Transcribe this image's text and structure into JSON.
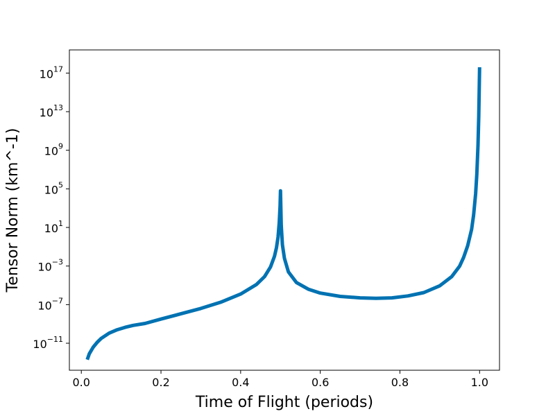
{
  "chart_data": {
    "type": "line",
    "title": "",
    "xlabel": "Time of Flight (periods)",
    "ylabel": "Tensor Norm (km^-1)",
    "xlim": [
      -0.03,
      1.05
    ],
    "ylim": [
      -13.8,
      19.4
    ],
    "yscale": "log",
    "grid": false,
    "legend": "none",
    "x_ticks": [
      {
        "value": 0.0,
        "label": "0.0"
      },
      {
        "value": 0.2,
        "label": "0.2"
      },
      {
        "value": 0.4,
        "label": "0.4"
      },
      {
        "value": 0.6,
        "label": "0.6"
      },
      {
        "value": 0.8,
        "label": "0.8"
      },
      {
        "value": 1.0,
        "label": "1.0"
      }
    ],
    "y_ticks": [
      {
        "exp": -11,
        "base": "10",
        "sup": "−11"
      },
      {
        "exp": -7,
        "base": "10",
        "sup": "−7"
      },
      {
        "exp": -3,
        "base": "10",
        "sup": "−3"
      },
      {
        "exp": 1,
        "base": "10",
        "sup": "1"
      },
      {
        "exp": 5,
        "base": "10",
        "sup": "5"
      },
      {
        "exp": 9,
        "base": "10",
        "sup": "9"
      },
      {
        "exp": 13,
        "base": "10",
        "sup": "13"
      },
      {
        "exp": 17,
        "base": "10",
        "sup": "17"
      }
    ],
    "series": [
      {
        "color": "#0072b2",
        "x": [
          0.015,
          0.02,
          0.03,
          0.04,
          0.05,
          0.07,
          0.09,
          0.11,
          0.13,
          0.16,
          0.2,
          0.25,
          0.3,
          0.35,
          0.4,
          0.44,
          0.46,
          0.475,
          0.485,
          0.49,
          0.494,
          0.497,
          0.499,
          0.5,
          0.502,
          0.505,
          0.51,
          0.52,
          0.54,
          0.57,
          0.6,
          0.65,
          0.7,
          0.74,
          0.78,
          0.82,
          0.86,
          0.9,
          0.93,
          0.95,
          0.96,
          0.97,
          0.98,
          0.985,
          0.99,
          0.993,
          0.996,
          0.998,
          0.999,
          1.0
        ],
        "log10_y": [
          -12.7,
          -12.1,
          -11.4,
          -10.9,
          -10.5,
          -9.95,
          -9.6,
          -9.35,
          -9.15,
          -8.95,
          -8.5,
          -7.95,
          -7.4,
          -6.75,
          -5.9,
          -4.9,
          -4.1,
          -3.1,
          -2.0,
          -1.1,
          0.0,
          1.5,
          3.2,
          4.8,
          1.2,
          -0.8,
          -2.2,
          -3.6,
          -4.7,
          -5.4,
          -5.8,
          -6.15,
          -6.3,
          -6.35,
          -6.3,
          -6.1,
          -5.75,
          -5.05,
          -4.1,
          -3.0,
          -2.1,
          -0.9,
          0.8,
          2.3,
          4.5,
          6.5,
          9.5,
          12.5,
          15.0,
          17.6
        ]
      }
    ]
  }
}
